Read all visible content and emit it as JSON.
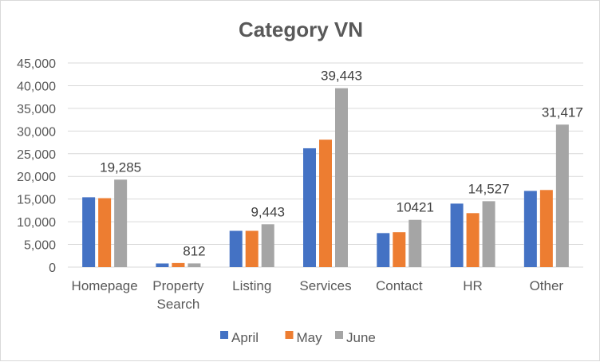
{
  "chart_data": {
    "type": "bar",
    "title": "Category VN",
    "xlabel": "",
    "ylabel": "",
    "ylim": [
      0,
      45000
    ],
    "yticks": [
      0,
      5000,
      10000,
      15000,
      20000,
      25000,
      30000,
      35000,
      40000,
      45000
    ],
    "ytick_labels": [
      "0",
      "5,000",
      "10,000",
      "15,000",
      "20,000",
      "25,000",
      "30,000",
      "35,000",
      "40,000",
      "45,000"
    ],
    "grid": true,
    "legend_position": "bottom",
    "categories": [
      [
        "Homepage"
      ],
      [
        "Property",
        "Search"
      ],
      [
        "Listing"
      ],
      [
        "Services"
      ],
      [
        "Contact"
      ],
      [
        "HR"
      ],
      [
        "Other"
      ]
    ],
    "series": [
      {
        "name": "April",
        "color": "#4472C4",
        "values": [
          15400,
          800,
          8000,
          26200,
          7500,
          14000,
          16800
        ]
      },
      {
        "name": "May",
        "color": "#ED7D31",
        "values": [
          15200,
          900,
          8000,
          28100,
          7700,
          11900,
          17000
        ]
      },
      {
        "name": "June",
        "color": "#A5A5A5",
        "values": [
          19285,
          812,
          9443,
          39443,
          10421,
          14527,
          31417
        ]
      }
    ],
    "data_labels": {
      "series": "June",
      "labels": [
        "19,285",
        "812",
        "9,443",
        "39,443",
        "10421",
        "14,527",
        "31,417"
      ]
    }
  }
}
